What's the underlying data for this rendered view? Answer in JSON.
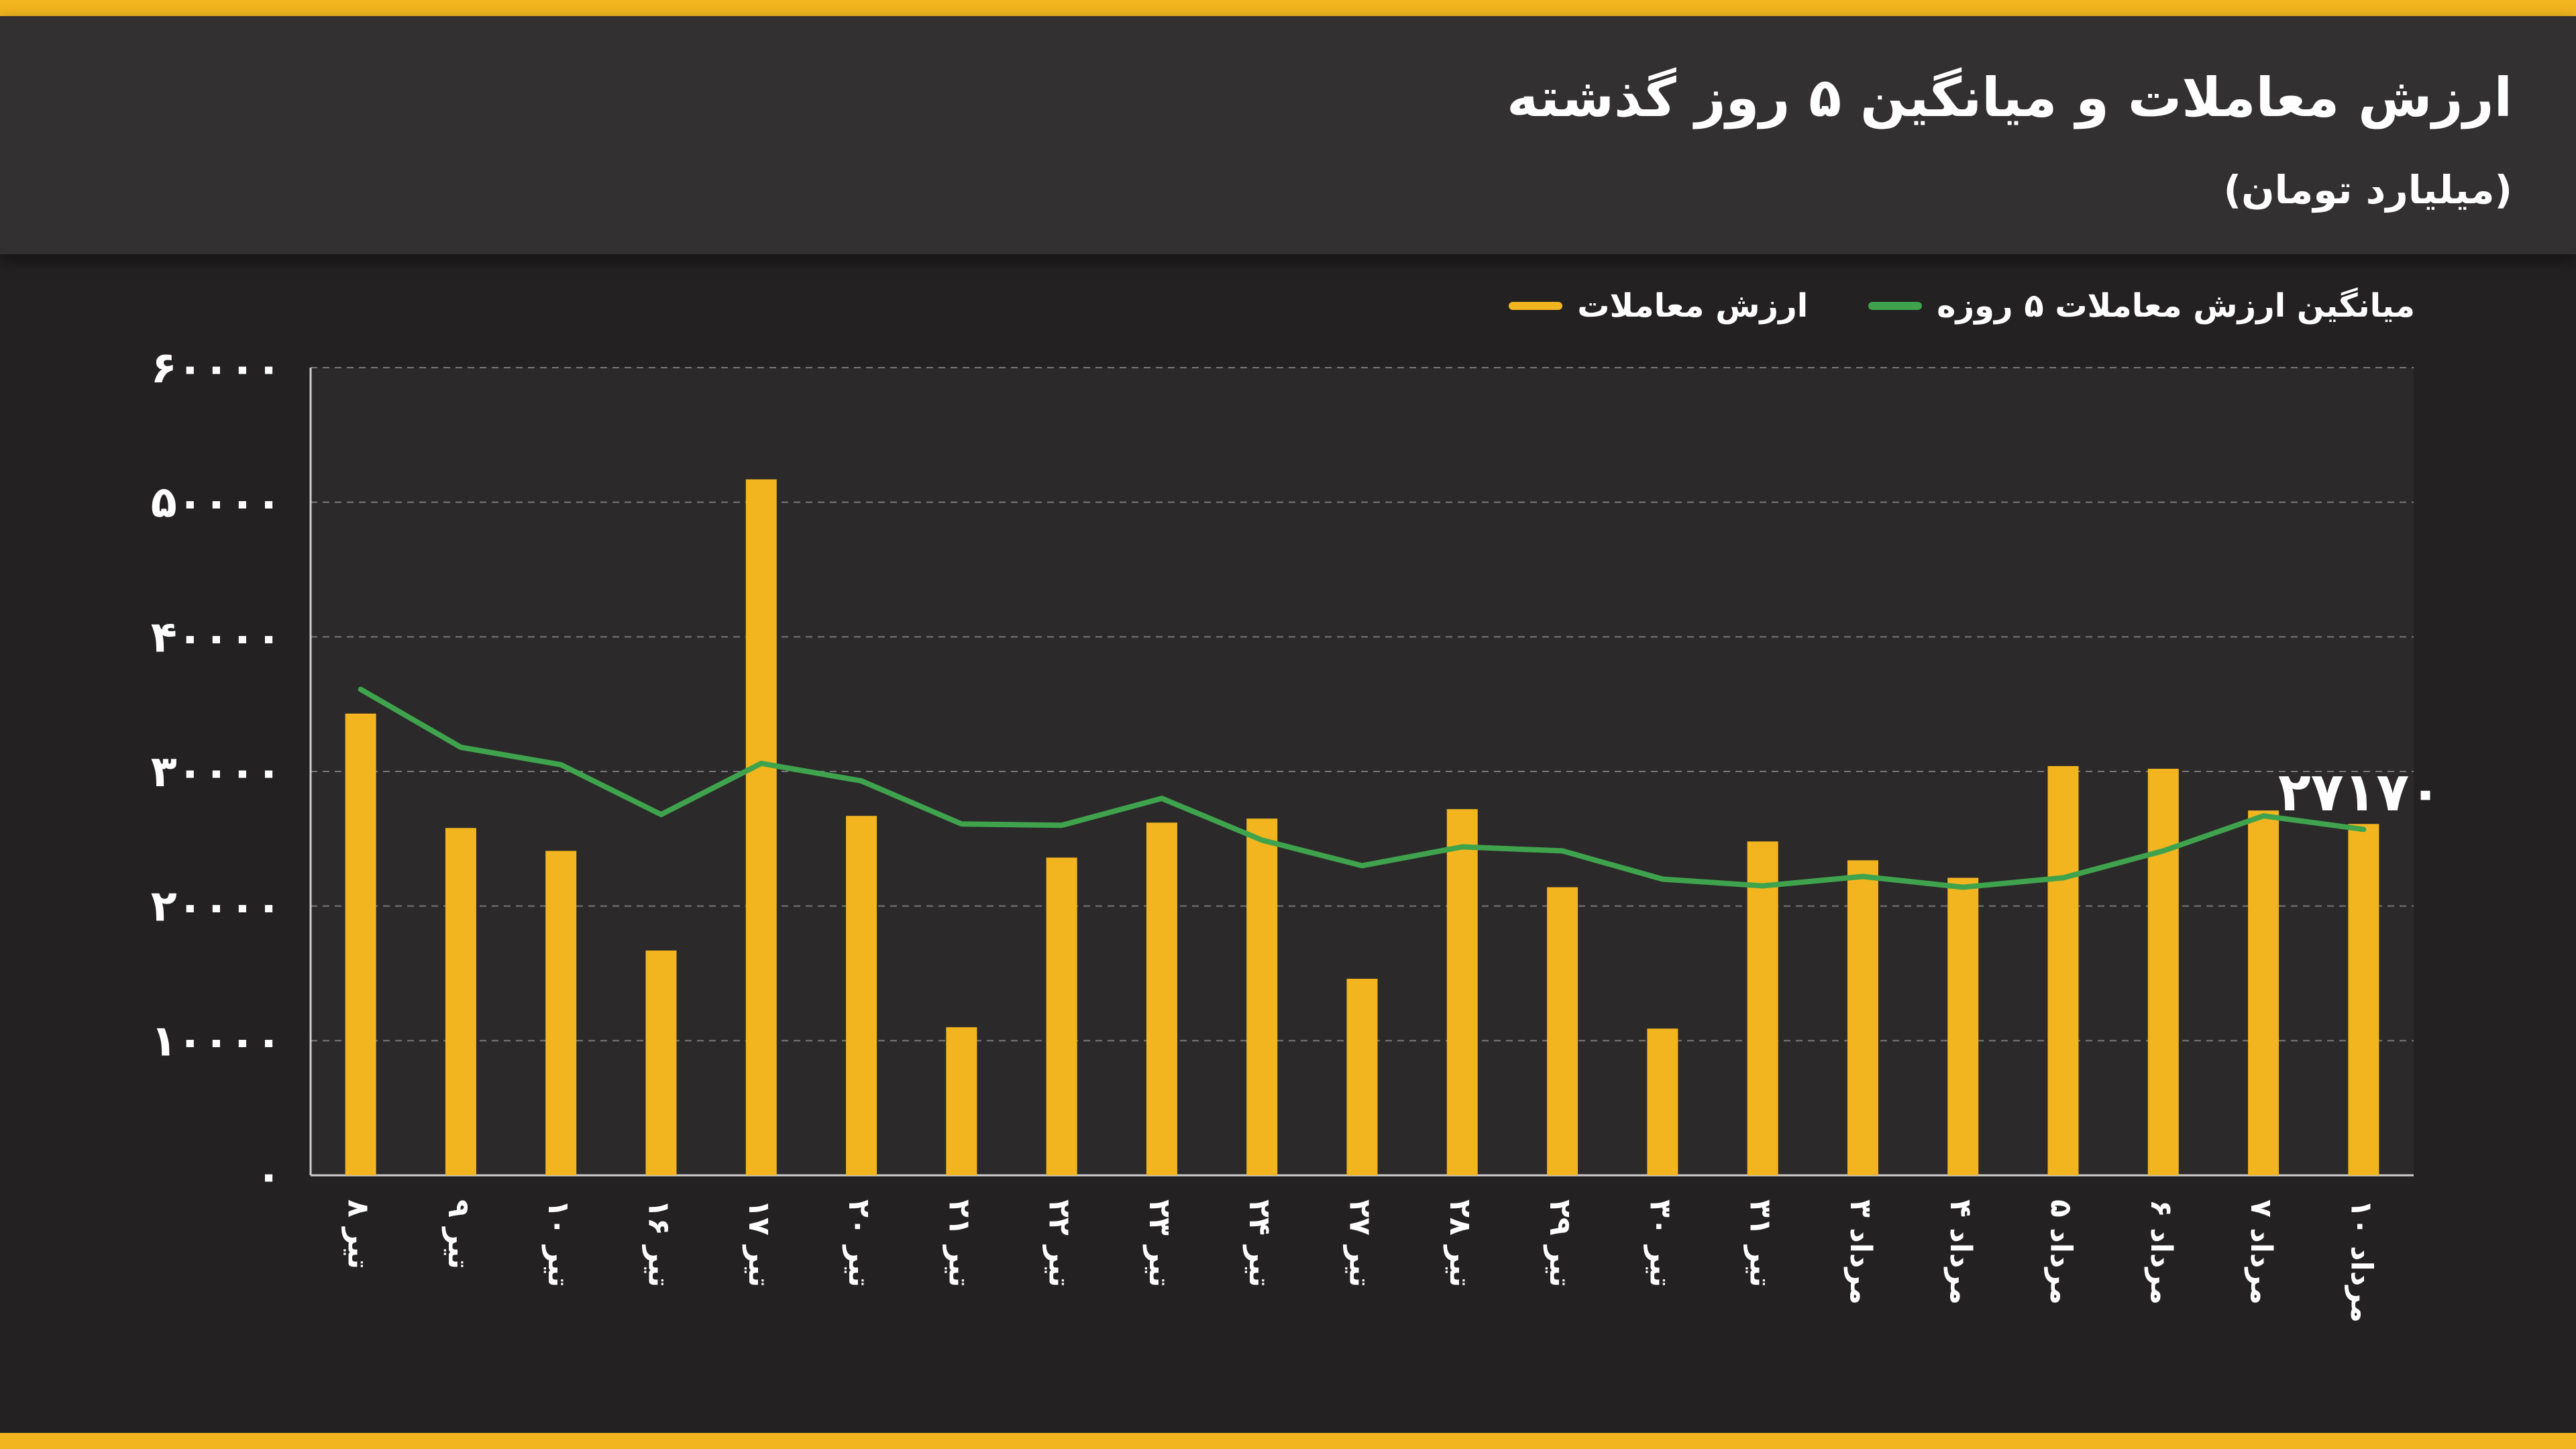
{
  "header": {
    "title": "ارزش معاملات و میانگین ۵ روز گذشته",
    "subtitle": "(میلیارد تومان)"
  },
  "colors": {
    "bar": "#f2b51f",
    "line": "#3fa34d",
    "accent": "#f2b51f"
  },
  "chart_data": {
    "type": "bar",
    "categories": [
      "تیر ۸",
      "تیر ۹",
      "تیر ۱۰",
      "تیر ۱۶",
      "تیر ۱۷",
      "تیر ۲۰",
      "تیر ۲۱",
      "تیر ۲۲",
      "تیر ۲۳",
      "تیر ۲۴",
      "تیر ۲۷",
      "تیر ۲۸",
      "تیر ۲۹",
      "تیر ۳۰",
      "تیر ۳۱",
      "مرداد ۳",
      "مرداد ۴",
      "مرداد ۵",
      "مرداد ۶",
      "مرداد ۷",
      "مرداد ۱۰"
    ],
    "series": [
      {
        "name": "ارزش معاملات",
        "type": "bar",
        "values": [
          34300,
          25800,
          24100,
          16700,
          51700,
          26700,
          11000,
          23600,
          26200,
          26500,
          14600,
          27200,
          21400,
          10900,
          24800,
          23400,
          22100,
          30400,
          30200,
          27100,
          26100
        ]
      },
      {
        "name": "میانگین ارزش معاملات ۵ روزه",
        "type": "line",
        "values": [
          36100,
          31800,
          30500,
          26800,
          30600,
          29300,
          26100,
          26000,
          28000,
          24900,
          23000,
          24400,
          24100,
          22000,
          21500,
          22200,
          21400,
          22100,
          24100,
          26700,
          25700
        ]
      }
    ],
    "yticks": [
      "۰",
      "۱۰۰۰۰",
      "۲۰۰۰۰",
      "۳۰۰۰۰",
      "۴۰۰۰۰",
      "۵۰۰۰۰",
      "۶۰۰۰۰"
    ],
    "ylim": [
      0,
      60000
    ],
    "grid": true,
    "legend_position": "top-right",
    "annotation": "۲۷۱۷۰"
  }
}
